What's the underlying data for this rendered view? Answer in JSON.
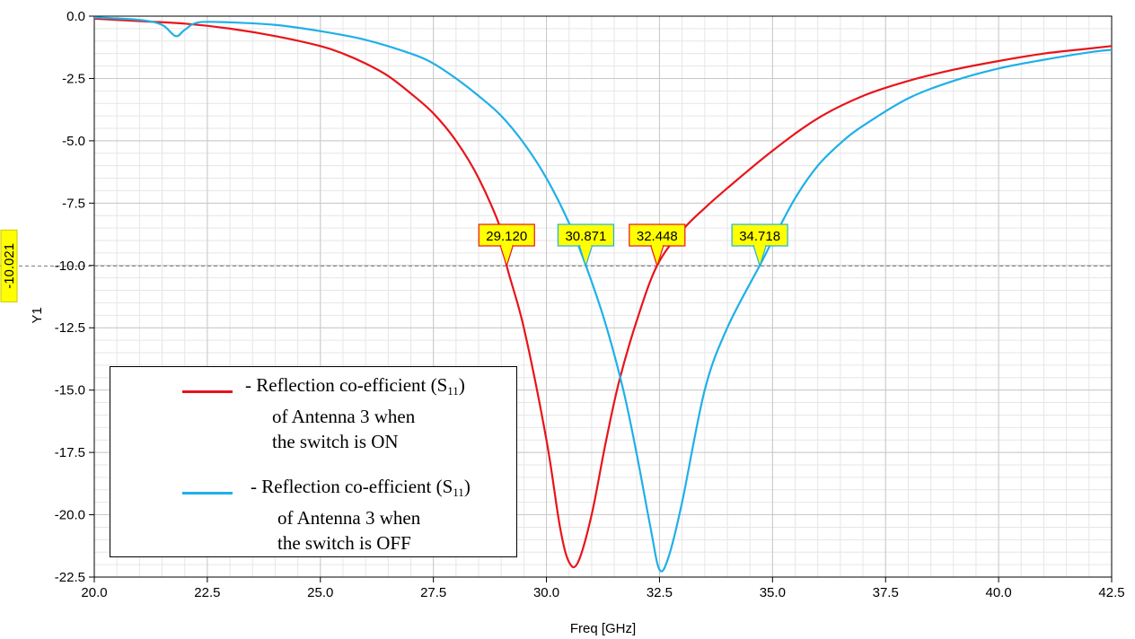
{
  "chart_data": {
    "type": "line",
    "xlabel": "Freq [GHz]",
    "ylabel": "Y1",
    "xlim": [
      20.0,
      42.5
    ],
    "ylim": [
      -22.5,
      0.0
    ],
    "x_ticks": [
      "20.0",
      "22.5",
      "25.0",
      "27.5",
      "30.0",
      "32.5",
      "35.0",
      "37.5",
      "40.0",
      "42.5"
    ],
    "y_ticks": [
      "0.0",
      "-2.5",
      "-5.0",
      "-7.5",
      "-10.0",
      "-12.5",
      "-15.0",
      "-17.5",
      "-20.0",
      "-22.5"
    ],
    "grid": true,
    "reference_line": {
      "y": -10.021,
      "label": "-10.021",
      "color": "#ffff00"
    },
    "series": [
      {
        "name": "Reflection co-efficient (S11) of Antenna 3 when the switch is ON",
        "color": "#e8141a",
        "points": [
          [
            20.0,
            -0.1
          ],
          [
            21.0,
            -0.2
          ],
          [
            22.0,
            -0.3
          ],
          [
            23.0,
            -0.5
          ],
          [
            24.0,
            -0.8
          ],
          [
            25.0,
            -1.2
          ],
          [
            25.5,
            -1.5
          ],
          [
            26.0,
            -1.9
          ],
          [
            26.5,
            -2.4
          ],
          [
            27.0,
            -3.1
          ],
          [
            27.5,
            -3.9
          ],
          [
            28.0,
            -5.0
          ],
          [
            28.5,
            -6.5
          ],
          [
            29.0,
            -8.6
          ],
          [
            29.12,
            -10.0
          ],
          [
            29.5,
            -12.5
          ],
          [
            30.0,
            -17.0
          ],
          [
            30.3,
            -20.5
          ],
          [
            30.5,
            -21.9
          ],
          [
            30.7,
            -21.9
          ],
          [
            31.0,
            -20.0
          ],
          [
            31.3,
            -17.2
          ],
          [
            31.6,
            -14.7
          ],
          [
            32.0,
            -12.2
          ],
          [
            32.448,
            -10.0
          ],
          [
            33.0,
            -8.6
          ],
          [
            33.5,
            -7.7
          ],
          [
            34.0,
            -6.9
          ],
          [
            35.0,
            -5.4
          ],
          [
            36.0,
            -4.1
          ],
          [
            37.0,
            -3.2
          ],
          [
            38.0,
            -2.6
          ],
          [
            39.0,
            -2.15
          ],
          [
            40.0,
            -1.8
          ],
          [
            41.0,
            -1.5
          ],
          [
            42.0,
            -1.3
          ],
          [
            42.5,
            -1.2
          ]
        ]
      },
      {
        "name": "Reflection co-efficient (S11) of Antenna 3 when the switch is OFF",
        "color": "#1fb0e8",
        "points": [
          [
            20.0,
            -0.05
          ],
          [
            21.0,
            -0.15
          ],
          [
            21.5,
            -0.35
          ],
          [
            21.8,
            -0.8
          ],
          [
            22.0,
            -0.55
          ],
          [
            22.3,
            -0.25
          ],
          [
            23.0,
            -0.25
          ],
          [
            24.0,
            -0.35
          ],
          [
            25.0,
            -0.6
          ],
          [
            26.0,
            -0.95
          ],
          [
            27.0,
            -1.5
          ],
          [
            27.5,
            -1.9
          ],
          [
            28.0,
            -2.5
          ],
          [
            28.5,
            -3.2
          ],
          [
            29.0,
            -4.0
          ],
          [
            29.5,
            -5.1
          ],
          [
            30.0,
            -6.5
          ],
          [
            30.5,
            -8.3
          ],
          [
            30.871,
            -10.0
          ],
          [
            31.3,
            -12.3
          ],
          [
            31.7,
            -15.0
          ],
          [
            32.0,
            -17.6
          ],
          [
            32.3,
            -20.5
          ],
          [
            32.5,
            -22.2
          ],
          [
            32.7,
            -21.7
          ],
          [
            33.0,
            -19.5
          ],
          [
            33.5,
            -15.0
          ],
          [
            34.0,
            -12.5
          ],
          [
            34.718,
            -10.0
          ],
          [
            35.0,
            -9.0
          ],
          [
            35.5,
            -7.3
          ],
          [
            36.0,
            -6.0
          ],
          [
            36.5,
            -5.1
          ],
          [
            37.0,
            -4.4
          ],
          [
            38.0,
            -3.3
          ],
          [
            39.0,
            -2.6
          ],
          [
            40.0,
            -2.1
          ],
          [
            41.0,
            -1.75
          ],
          [
            42.0,
            -1.45
          ],
          [
            42.5,
            -1.35
          ]
        ]
      }
    ],
    "markers": [
      {
        "label": "29.120",
        "x": 29.12,
        "series": "ON",
        "border": "#e8141a",
        "fill": "#ffff00"
      },
      {
        "label": "30.871",
        "x": 30.871,
        "series": "OFF",
        "border": "#1fb0e8",
        "fill": "#ffff00"
      },
      {
        "label": "32.448",
        "x": 32.448,
        "series": "ON",
        "border": "#e8141a",
        "fill": "#ffff00"
      },
      {
        "label": "34.718",
        "x": 34.718,
        "series": "OFF",
        "border": "#1fb0e8",
        "fill": "#ffff00"
      }
    ]
  },
  "legend": {
    "entries": [
      {
        "color": "#e8141a",
        "prefix": "- Reflection co-efficient (S",
        "sub": "11",
        "suffix": ")",
        "line2": "of Antenna 3 when",
        "line3": "the switch is ON"
      },
      {
        "color": "#1fb0e8",
        "prefix": "- Reflection co-efficient (S",
        "sub": "11",
        "suffix": ")",
        "line2": "of Antenna 3 when",
        "line3": "the switch is OFF"
      }
    ]
  }
}
